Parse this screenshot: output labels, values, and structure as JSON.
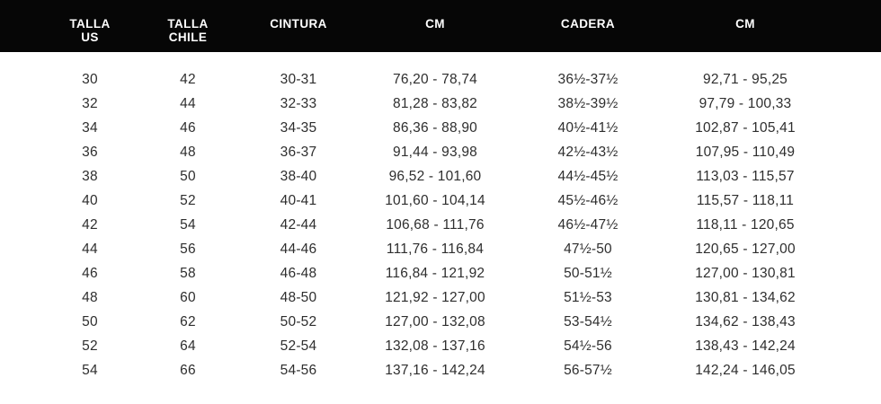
{
  "colors": {
    "header_bg": "#060606",
    "header_text": "#ffffff",
    "body_bg": "#ffffff",
    "body_text": "#2e2e2e"
  },
  "header": {
    "columns": [
      {
        "line1": "TALLA",
        "line2": "US"
      },
      {
        "line1": "TALLA",
        "line2": "CHILE"
      },
      {
        "line1": "CINTURA",
        "line2": ""
      },
      {
        "line1": "CM",
        "line2": ""
      },
      {
        "line1": "CADERA",
        "line2": ""
      },
      {
        "line1": "CM",
        "line2": ""
      }
    ]
  },
  "chart_data": {
    "type": "table",
    "title": "Size conversion chart (Tallas)",
    "columns": [
      "TALLA US",
      "TALLA CHILE",
      "CINTURA",
      "CM",
      "CADERA",
      "CM"
    ],
    "rows": [
      [
        "30",
        "42",
        "30-31",
        "76,20 - 78,74",
        "36½-37½",
        "92,71 - 95,25"
      ],
      [
        "32",
        "44",
        "32-33",
        "81,28 - 83,82",
        "38½-39½",
        "97,79 - 100,33"
      ],
      [
        "34",
        "46",
        "34-35",
        "86,36 - 88,90",
        "40½-41½",
        "102,87 - 105,41"
      ],
      [
        "36",
        "48",
        "36-37",
        "91,44 - 93,98",
        "42½-43½",
        "107,95 - 110,49"
      ],
      [
        "38",
        "50",
        "38-40",
        "96,52 - 101,60",
        "44½-45½",
        "113,03 - 115,57"
      ],
      [
        "40",
        "52",
        "40-41",
        "101,60 - 104,14",
        "45½-46½",
        "115,57 - 118,11"
      ],
      [
        "42",
        "54",
        "42-44",
        "106,68 - 111,76",
        "46½-47½",
        "118,11 - 120,65"
      ],
      [
        "44",
        "56",
        "44-46",
        "111,76 - 116,84",
        "47½-50",
        "120,65 - 127,00"
      ],
      [
        "46",
        "58",
        "46-48",
        "116,84 - 121,92",
        "50-51½",
        "127,00 - 130,81"
      ],
      [
        "48",
        "60",
        "48-50",
        "121,92 - 127,00",
        "51½-53",
        "130,81 - 134,62"
      ],
      [
        "50",
        "62",
        "50-52",
        "127,00 - 132,08",
        "53-54½",
        "134,62 - 138,43"
      ],
      [
        "52",
        "64",
        "52-54",
        "132,08 - 137,16",
        "54½-56",
        "138,43 - 142,24"
      ],
      [
        "54",
        "66",
        "54-56",
        "137,16 - 142,24",
        "56-57½",
        "142,24 - 146,05"
      ]
    ]
  }
}
